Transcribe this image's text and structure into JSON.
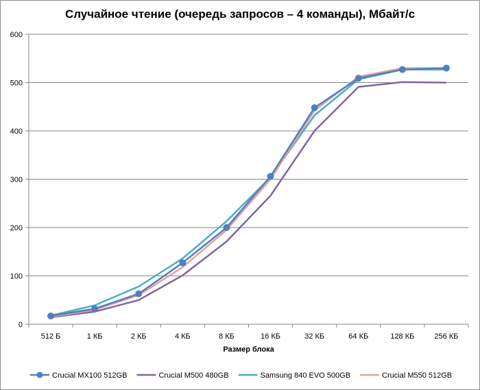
{
  "chart_data": {
    "type": "line",
    "title": "Случайное чтение (очередь запросов – 4 команды), Мбайт/с",
    "xlabel": "Размер блока",
    "ylabel": "",
    "categories": [
      "512 Б",
      "1 КБ",
      "2 КБ",
      "4 КБ",
      "8 КБ",
      "16 КБ",
      "32 КБ",
      "64 КБ",
      "128 КБ",
      "256 КБ"
    ],
    "ylim": [
      0,
      600
    ],
    "yticks": [
      0,
      100,
      200,
      300,
      400,
      500,
      600
    ],
    "grid": "horizontal",
    "legend_position": "bottom",
    "series": [
      {
        "name": "Crucial MX100 512GB",
        "color": "#4f81bd",
        "markers": true,
        "values": [
          17,
          32,
          63,
          127,
          200,
          306,
          448,
          509,
          527,
          530
        ]
      },
      {
        "name": "Crucial M500 480GB",
        "color": "#8064a2",
        "markers": false,
        "values": [
          14,
          26,
          50,
          101,
          171,
          266,
          400,
          491,
          501,
          500
        ]
      },
      {
        "name": "Samsung 840 EVO 500GB",
        "color": "#4bacc6",
        "markers": false,
        "values": [
          18,
          39,
          78,
          136,
          213,
          304,
          432,
          507,
          527,
          527
        ]
      },
      {
        "name": "Crucial M550 512GB",
        "color": "#e6a09a",
        "markers": false,
        "values": [
          15,
          30,
          60,
          118,
          195,
          300,
          442,
          512,
          530,
          530
        ]
      }
    ]
  }
}
